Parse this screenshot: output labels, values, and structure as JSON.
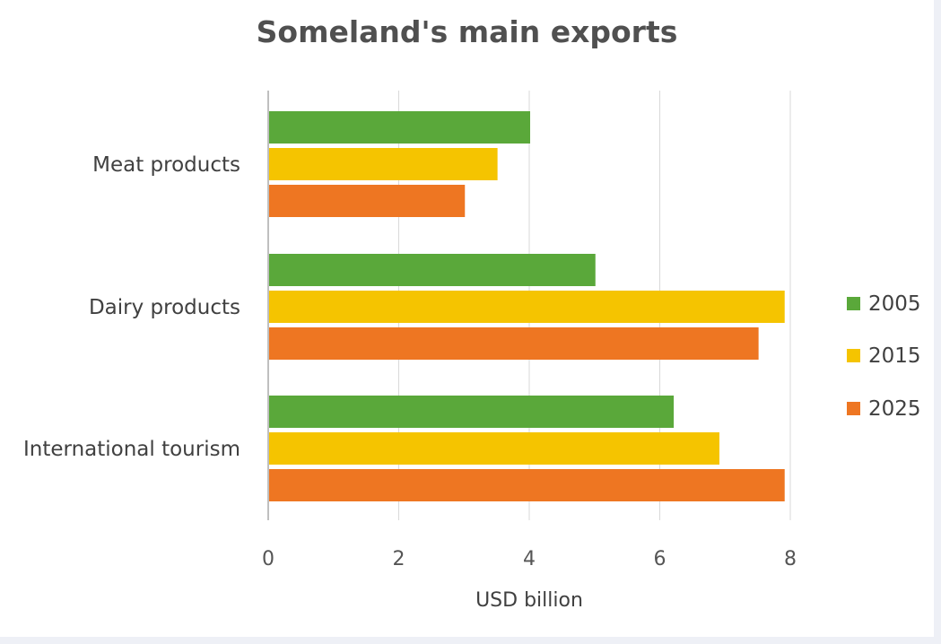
{
  "chart_data": {
    "type": "bar",
    "orientation": "horizontal",
    "title": "Someland's main exports",
    "xlabel": "USD billion",
    "ylabel": "",
    "xlim": [
      0,
      8
    ],
    "x_ticks": [
      "0",
      "2",
      "4",
      "6",
      "8"
    ],
    "categories": [
      "Meat products",
      "Dairy products",
      "International tourism"
    ],
    "series": [
      {
        "name": "2005",
        "color": "#5aa83a",
        "values": [
          4.0,
          5.0,
          6.2
        ]
      },
      {
        "name": "2015",
        "color": "#f5c400",
        "values": [
          3.5,
          7.9,
          6.9
        ]
      },
      {
        "name": "2025",
        "color": "#ee7622",
        "values": [
          3.0,
          7.5,
          7.9
        ]
      }
    ],
    "grid": true,
    "legend_position": "right"
  }
}
